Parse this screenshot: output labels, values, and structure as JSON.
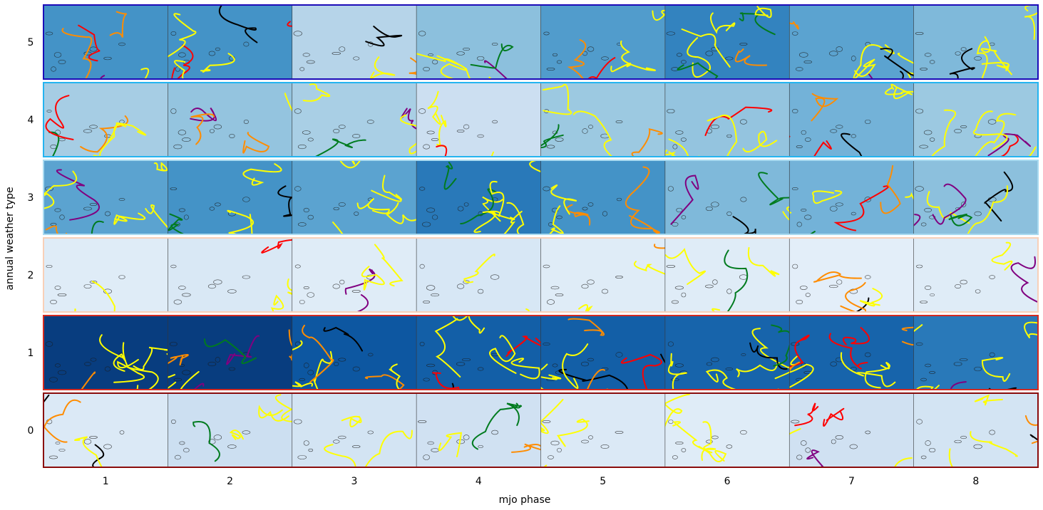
{
  "chart_data": {
    "type": "heatmap",
    "title": "",
    "xlabel": "mjo phase",
    "ylabel": "annual weather type",
    "x_tick_labels": [
      "1",
      "2",
      "3",
      "4",
      "5",
      "6",
      "7",
      "8"
    ],
    "y_tick_labels": [
      "5",
      "4",
      "3",
      "2",
      "1",
      "0"
    ],
    "cell_values_description": "blue shading per cell; higher value = darker blue",
    "cell_values": [
      [
        0.62,
        0.62,
        0.3,
        0.42,
        0.58,
        0.68,
        0.55,
        0.45
      ],
      [
        0.35,
        0.4,
        0.34,
        0.22,
        0.38,
        0.4,
        0.48,
        0.38
      ],
      [
        0.55,
        0.62,
        0.55,
        0.72,
        0.62,
        0.45,
        0.48,
        0.42
      ],
      [
        0.12,
        0.15,
        0.12,
        0.16,
        0.12,
        0.12,
        0.1,
        0.12
      ],
      [
        0.95,
        0.95,
        0.85,
        0.82,
        0.82,
        0.8,
        0.8,
        0.72
      ],
      [
        0.14,
        0.22,
        0.18,
        0.2,
        0.14,
        0.12,
        0.2,
        0.18
      ]
    ],
    "row_frame_colors": [
      "#1c0bb8",
      "#24b4f0",
      "#a9daf0",
      "#f8d0b8",
      "#d42a20",
      "#8a0c0c"
    ],
    "track_colors": [
      "#ffff00",
      "#ff8c00",
      "#ff0000",
      "#800080",
      "#000000",
      "#007b1f"
    ]
  }
}
